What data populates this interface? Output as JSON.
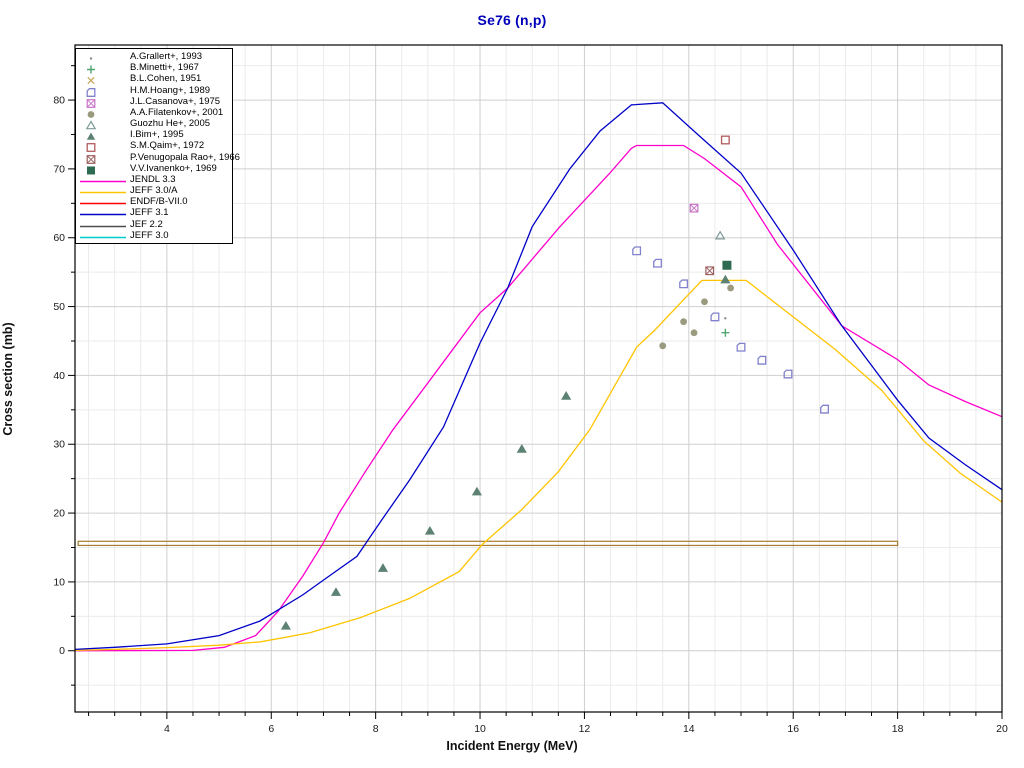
{
  "title": "Se76 (n,p)",
  "title_color": "#0000bb",
  "chart_data": {
    "type": "line",
    "title": "Se76 (n,p)",
    "xlabel": "Incident Energy (MeV)",
    "ylabel": "Cross section (mb)",
    "xlim": [
      2.24,
      20.0
    ],
    "ylim": [
      -8.9,
      88.0
    ],
    "x_major_ticks": [
      4,
      6,
      8,
      10,
      12,
      14,
      16,
      18,
      20
    ],
    "x_minor_step": 0.5,
    "y_major_ticks": [
      0,
      10,
      20,
      30,
      40,
      50,
      60,
      70,
      80
    ],
    "y_minor_step": 5,
    "grid": true,
    "legend_position": "top-left",
    "band": {
      "name": "B.L.Cohen, 1951",
      "color": "#a97b2e",
      "x_range": [
        2.3,
        18.0
      ],
      "y_range": [
        15.3,
        15.9
      ]
    },
    "series": [
      {
        "name": "JENDL 3.3",
        "color": "#ff00cc",
        "points": [
          [
            2.24,
            0
          ],
          [
            4.5,
            0.05
          ],
          [
            5.1,
            0.5
          ],
          [
            5.7,
            2.2
          ],
          [
            6.13,
            5.7
          ],
          [
            6.6,
            10.8
          ],
          [
            7.0,
            15.7
          ],
          [
            7.3,
            20
          ],
          [
            7.8,
            26
          ],
          [
            8.33,
            32.1
          ],
          [
            9.04,
            39.3
          ],
          [
            10,
            49.1
          ],
          [
            10.53,
            52.7
          ],
          [
            11.53,
            61.6
          ],
          [
            12.49,
            69.4
          ],
          [
            12.9,
            73.0
          ],
          [
            13.0,
            73.4
          ],
          [
            13.9,
            73.4
          ],
          [
            14.3,
            71.5
          ],
          [
            15,
            67.4
          ],
          [
            15.7,
            59.0
          ],
          [
            16.93,
            47.2
          ],
          [
            18,
            42.3
          ],
          [
            18.6,
            38.6
          ],
          [
            19.3,
            36.2
          ],
          [
            20,
            34.0
          ]
        ]
      },
      {
        "name": "JEFF 3.0/A",
        "color": "#ffc400",
        "points": [
          [
            2.24,
            0.05
          ],
          [
            3,
            0.2
          ],
          [
            4,
            0.45
          ],
          [
            5,
            0.8
          ],
          [
            5.8,
            1.3
          ],
          [
            6.74,
            2.6
          ],
          [
            7.7,
            4.8
          ],
          [
            8.65,
            7.6
          ],
          [
            9.6,
            11.5
          ],
          [
            10.05,
            15.5
          ],
          [
            10.8,
            20.5
          ],
          [
            11.5,
            26.0
          ],
          [
            12.1,
            32.1
          ],
          [
            13.0,
            44.1
          ],
          [
            13.35,
            46.6
          ],
          [
            13.9,
            51.0
          ],
          [
            14.25,
            53.8
          ],
          [
            15.1,
            53.8
          ],
          [
            16,
            48.5
          ],
          [
            16.8,
            43.8
          ],
          [
            17.7,
            37.8
          ],
          [
            18.5,
            30.5
          ],
          [
            19.2,
            25.8
          ],
          [
            20,
            21.6
          ]
        ]
      },
      {
        "name": "ENDF/B-VII.0",
        "color": "#ff0000",
        "points": []
      },
      {
        "name": "JEFF 3.1",
        "color": "#0000c8",
        "points": [
          [
            2.24,
            0.2
          ],
          [
            3,
            0.5
          ],
          [
            4,
            1.0
          ],
          [
            5,
            2.2
          ],
          [
            5.78,
            4.3
          ],
          [
            6.6,
            8.1
          ],
          [
            7.1,
            10.8
          ],
          [
            7.64,
            13.7
          ],
          [
            8.08,
            18.6
          ],
          [
            8.65,
            24.8
          ],
          [
            9.3,
            32.5
          ],
          [
            10,
            44.7
          ],
          [
            10.53,
            52.7
          ],
          [
            11,
            61.6
          ],
          [
            11.72,
            70.0
          ],
          [
            12.3,
            75.5
          ],
          [
            12.9,
            79.3
          ],
          [
            13.5,
            79.6
          ],
          [
            14.2,
            74.8
          ],
          [
            15,
            69.4
          ],
          [
            16,
            58.2
          ],
          [
            16.93,
            47.2
          ],
          [
            18,
            36.4
          ],
          [
            18.6,
            30.9
          ],
          [
            19.3,
            27.0
          ],
          [
            20,
            23.4
          ]
        ]
      },
      {
        "name": "JEF 2.2",
        "color": "#4d4d4d",
        "points": []
      },
      {
        "name": "JEFF 3.0",
        "color": "#00cccc",
        "points": []
      }
    ],
    "datasets": [
      {
        "name": "A.Grallert+, 1993",
        "marker": "dot",
        "color": "#8a8a8a",
        "points": [
          [
            14.7,
            48.3
          ]
        ]
      },
      {
        "name": "B.Minetti+, 1967",
        "marker": "plus",
        "color": "#53a56e",
        "points": [
          [
            14.7,
            46.2
          ]
        ]
      },
      {
        "name": "B.L.Cohen, 1951",
        "marker": "x",
        "color": "#c9a85c",
        "points": []
      },
      {
        "name": "H.M.Hoang+, 1989",
        "marker": "square-notched",
        "color": "#8181cd",
        "points": [
          [
            13.0,
            58.1
          ],
          [
            13.4,
            56.3
          ],
          [
            13.9,
            53.3
          ],
          [
            14.5,
            48.5
          ],
          [
            15.0,
            44.1
          ],
          [
            15.4,
            42.2
          ],
          [
            15.9,
            40.2
          ],
          [
            16.6,
            35.1
          ]
        ]
      },
      {
        "name": "J.L.Casanova+, 1975",
        "marker": "square-crossed",
        "color": "#c973c9",
        "points": [
          [
            14.1,
            64.3
          ]
        ]
      },
      {
        "name": "A.A.Filatenkov+, 2001",
        "marker": "circle-filled",
        "color": "#9a9a7e",
        "points": [
          [
            13.5,
            44.3
          ],
          [
            13.9,
            47.8
          ],
          [
            14.1,
            46.2
          ],
          [
            14.3,
            50.7
          ],
          [
            14.8,
            52.7
          ]
        ]
      },
      {
        "name": "Guozhu He+, 2005",
        "marker": "triangle-open",
        "color": "#7e9898",
        "points": [
          [
            14.6,
            60.3
          ]
        ]
      },
      {
        "name": "I.Bim+, 1995",
        "marker": "triangle-filled",
        "color": "#5d8273",
        "points": [
          [
            6.28,
            3.6
          ],
          [
            7.24,
            8.5
          ],
          [
            8.14,
            12.0
          ],
          [
            9.04,
            17.4
          ],
          [
            9.94,
            23.1
          ],
          [
            10.8,
            29.3
          ],
          [
            11.65,
            37.0
          ],
          [
            14.7,
            53.9
          ]
        ]
      },
      {
        "name": "S.M.Qaim+, 1972",
        "marker": "square-open",
        "color": "#b25c5c",
        "points": [
          [
            14.7,
            74.2
          ]
        ]
      },
      {
        "name": "P.Venugopala Rao+, 1966",
        "marker": "square-crossed",
        "color": "#9c5f5f",
        "points": [
          [
            14.4,
            55.2
          ]
        ]
      },
      {
        "name": "V.V.Ivanenko+, 1969",
        "marker": "square-filled",
        "color": "#2f6b52",
        "points": [
          [
            14.73,
            56.0
          ]
        ]
      }
    ]
  },
  "legend": {
    "entries": [
      {
        "label": "A.Grallert+, 1993",
        "type": "marker",
        "marker": "dot",
        "color": "#8a8a8a"
      },
      {
        "label": "B.Minetti+, 1967",
        "type": "marker",
        "marker": "plus",
        "color": "#53a56e"
      },
      {
        "label": "B.L.Cohen, 1951",
        "type": "marker",
        "marker": "x",
        "color": "#c9a85c"
      },
      {
        "label": "H.M.Hoang+, 1989",
        "type": "marker",
        "marker": "square-notched",
        "color": "#8181cd"
      },
      {
        "label": "J.L.Casanova+, 1975",
        "type": "marker",
        "marker": "square-crossed",
        "color": "#c973c9"
      },
      {
        "label": "A.A.Filatenkov+, 2001",
        "type": "marker",
        "marker": "circle-filled",
        "color": "#9a9a7e"
      },
      {
        "label": "Guozhu He+, 2005",
        "type": "marker",
        "marker": "triangle-open",
        "color": "#7e9898"
      },
      {
        "label": "I.Bim+, 1995",
        "type": "marker",
        "marker": "triangle-filled",
        "color": "#5d8273"
      },
      {
        "label": "S.M.Qaim+, 1972",
        "type": "marker",
        "marker": "square-open",
        "color": "#b25c5c"
      },
      {
        "label": "P.Venugopala Rao+, 1966",
        "type": "marker",
        "marker": "square-crossed",
        "color": "#9c5f5f"
      },
      {
        "label": "V.V.Ivanenko+, 1969",
        "type": "marker",
        "marker": "square-filled",
        "color": "#2f6b52"
      },
      {
        "label": "JENDL 3.3",
        "type": "line",
        "color": "#ff00cc"
      },
      {
        "label": "JEFF 3.0/A",
        "type": "line",
        "color": "#ffc400"
      },
      {
        "label": "ENDF/B-VII.0",
        "type": "line",
        "color": "#ff0000"
      },
      {
        "label": "JEFF 3.1",
        "type": "line",
        "color": "#0000c8"
      },
      {
        "label": "JEF 2.2",
        "type": "line",
        "color": "#4d4d4d"
      },
      {
        "label": "JEFF 3.0",
        "type": "line",
        "color": "#00cccc"
      }
    ]
  }
}
